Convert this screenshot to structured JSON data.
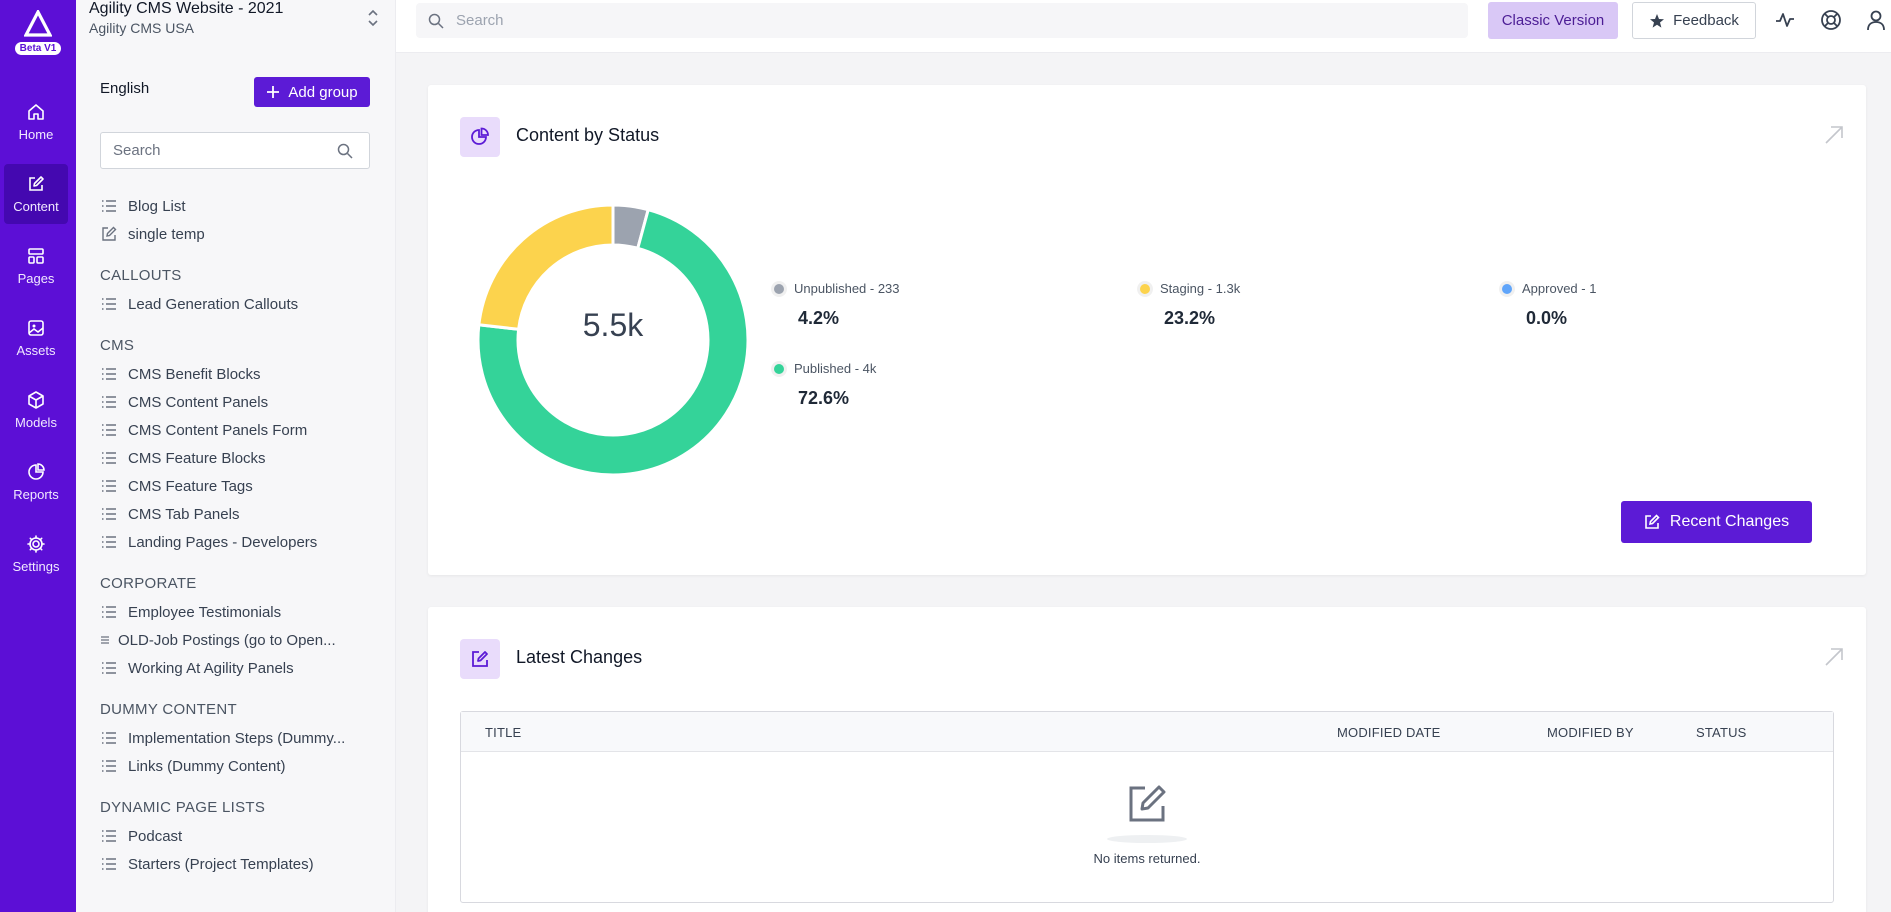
{
  "rail": {
    "badge": "Beta V1",
    "items": [
      {
        "label": "Home",
        "icon": "home-icon"
      },
      {
        "label": "Content",
        "icon": "edit-icon",
        "active": true
      },
      {
        "label": "Pages",
        "icon": "pages-icon"
      },
      {
        "label": "Assets",
        "icon": "image-icon"
      },
      {
        "label": "Models",
        "icon": "cube-icon"
      },
      {
        "label": "Reports",
        "icon": "pie-chart-icon"
      },
      {
        "label": "Settings",
        "icon": "gear-icon"
      }
    ]
  },
  "instance": {
    "name": "Agility CMS Website - 2021",
    "subtitle": "Agility CMS USA"
  },
  "sidebar": {
    "language": "English",
    "add_group_label": "Add group",
    "search_placeholder": "Search",
    "top_items": [
      {
        "label": "Blog List",
        "icon": "list-icon"
      },
      {
        "label": "single temp",
        "icon": "edit-icon"
      }
    ],
    "groups": [
      {
        "heading": "CALLOUTS",
        "items": [
          {
            "label": "Lead Generation Callouts"
          }
        ]
      },
      {
        "heading": "CMS",
        "items": [
          {
            "label": "CMS Benefit Blocks"
          },
          {
            "label": "CMS Content Panels"
          },
          {
            "label": "CMS Content Panels Form"
          },
          {
            "label": "CMS Feature Blocks"
          },
          {
            "label": "CMS Feature Tags"
          },
          {
            "label": "CMS Tab Panels"
          },
          {
            "label": "Landing Pages - Developers"
          }
        ]
      },
      {
        "heading": "CORPORATE",
        "items": [
          {
            "label": "Employee Testimonials"
          },
          {
            "label": "OLD-Job Postings (go to Open..."
          },
          {
            "label": "Working At Agility Panels"
          }
        ]
      },
      {
        "heading": "DUMMY CONTENT",
        "items": [
          {
            "label": "Implementation Steps (Dummy..."
          },
          {
            "label": "Links (Dummy Content)"
          }
        ]
      },
      {
        "heading": "DYNAMIC PAGE LISTS",
        "items": [
          {
            "label": "Podcast"
          },
          {
            "label": "Starters (Project Templates)"
          }
        ]
      }
    ]
  },
  "topbar": {
    "search_placeholder": "Search",
    "classic_label": "Classic Version",
    "feedback_label": "Feedback"
  },
  "status_card": {
    "title": "Content by Status",
    "total": "5.5k",
    "recent_button": "Recent Changes",
    "legend": [
      {
        "label": "Unpublished - 233",
        "percent": "4.2%",
        "color": "#9ca3af"
      },
      {
        "label": "Staging - 1.3k",
        "percent": "23.2%",
        "color": "#fcd34d"
      },
      {
        "label": "Approved - 1",
        "percent": "0.0%",
        "color": "#60a5fa"
      },
      {
        "label": "Published - 4k",
        "percent": "72.6%",
        "color": "#34d399"
      }
    ]
  },
  "chart_data": {
    "type": "pie",
    "title": "Content by Status",
    "total_label": "5.5k",
    "slices": [
      {
        "name": "Unpublished",
        "value": 233,
        "percent": 4.2,
        "color": "#9ca3af"
      },
      {
        "name": "Published",
        "value": 4000,
        "percent": 72.6,
        "color": "#34d399"
      },
      {
        "name": "Staging",
        "value": 1300,
        "percent": 23.2,
        "color": "#fcd34d"
      },
      {
        "name": "Approved",
        "value": 1,
        "percent": 0.0,
        "color": "#60a5fa"
      }
    ]
  },
  "latest_card": {
    "title": "Latest Changes",
    "columns": [
      "TITLE",
      "MODIFIED DATE",
      "MODIFIED BY",
      "STATUS"
    ],
    "empty_text": "No items returned."
  },
  "colors": {
    "brand": "#5c0fd6",
    "accent_button": "#5c1bd6"
  }
}
